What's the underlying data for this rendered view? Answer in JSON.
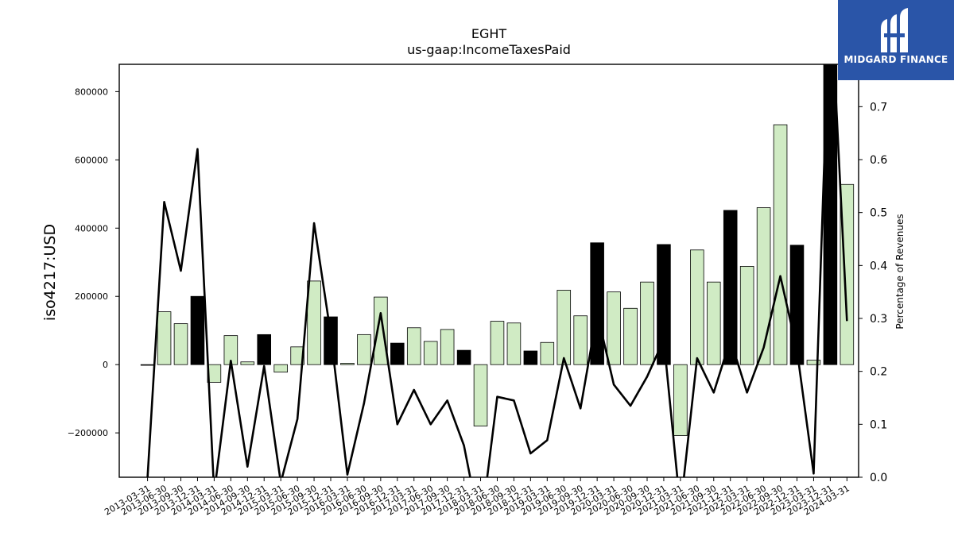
{
  "chart_data": {
    "type": "bar",
    "title": "EGHT",
    "subtitle": "us-gaap:IncomeTaxesPaid",
    "ylabel": "iso4217:USD",
    "y2label": "Percentage of Revenues",
    "ylim": [
      -330000,
      880000
    ],
    "y2lim": [
      0.0,
      0.78
    ],
    "yticks": [
      -200000,
      0,
      200000,
      400000,
      600000,
      800000
    ],
    "y2ticks": [
      0.0,
      0.1,
      0.2,
      0.3,
      0.4,
      0.5,
      0.6,
      0.7
    ],
    "categories": [
      "2013-03-31",
      "2013-06-30",
      "2013-09-30",
      "2013-12-31",
      "2014-03-31",
      "2014-06-30",
      "2014-09-30",
      "2014-12-31",
      "2015-03-31",
      "2015-06-30",
      "2015-09-30",
      "2015-12-31",
      "2016-03-31",
      "2016-06-30",
      "2016-09-30",
      "2016-12-31",
      "2017-03-31",
      "2017-06-30",
      "2017-09-30",
      "2017-12-31",
      "2018-03-31",
      "2018-06-30",
      "2018-09-30",
      "2018-12-31",
      "2019-03-31",
      "2019-06-30",
      "2019-09-30",
      "2019-12-31",
      "2020-03-31",
      "2020-06-30",
      "2020-09-30",
      "2020-12-31",
      "2021-03-31",
      "2021-06-30",
      "2021-09-30",
      "2021-12-31",
      "2022-03-31",
      "2022-06-30",
      "2022-09-30",
      "2022-12-31",
      "2023-03-31",
      "2023-12-31",
      "2024-03-31"
    ],
    "values": [
      -2000,
      155000,
      120000,
      200000,
      -52000,
      85000,
      8000,
      88000,
      -22000,
      52000,
      245000,
      140000,
      4000,
      88000,
      198000,
      63000,
      108000,
      68000,
      103000,
      42000,
      -180000,
      127000,
      122000,
      40000,
      65000,
      218000,
      143000,
      357000,
      213000,
      165000,
      242000,
      352000,
      -208000,
      336000,
      242000,
      452000,
      288000,
      460000,
      703000,
      350000,
      13000,
      900000,
      528000
    ],
    "highlight": [
      false,
      false,
      false,
      true,
      false,
      false,
      false,
      true,
      false,
      false,
      false,
      true,
      false,
      false,
      false,
      true,
      false,
      false,
      false,
      true,
      false,
      false,
      false,
      true,
      false,
      false,
      false,
      true,
      false,
      false,
      false,
      true,
      false,
      false,
      false,
      true,
      false,
      false,
      false,
      true,
      false,
      true,
      false
    ],
    "series": [
      {
        "name": "Percentage of Revenues",
        "type": "line",
        "values": [
          0.0,
          0.52,
          0.39,
          0.62,
          -0.03,
          0.22,
          0.02,
          0.21,
          -0.01,
          0.11,
          0.48,
          0.27,
          0.005,
          0.14,
          0.31,
          0.1,
          0.165,
          0.1,
          0.145,
          0.06,
          -0.1,
          0.152,
          0.145,
          0.045,
          0.07,
          0.225,
          0.13,
          0.31,
          0.175,
          0.135,
          0.19,
          0.26,
          -0.06,
          0.225,
          0.16,
          0.26,
          0.16,
          0.245,
          0.38,
          0.24,
          0.007,
          0.93,
          0.295
        ]
      }
    ],
    "colors": {
      "bar": "#d0ebc4",
      "highlight_bar": "#000000",
      "line": "#000000"
    }
  },
  "logo": {
    "text": "MIDGARD FINANCE",
    "background": "#2a55a8"
  }
}
